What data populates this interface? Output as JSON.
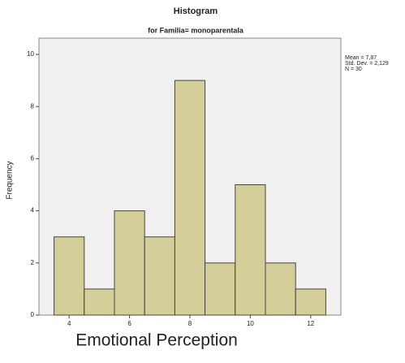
{
  "chart_data": {
    "type": "histogram",
    "title": "Histogram",
    "subtitle": "for Familia= monoparentala",
    "bins": [
      3.5,
      4.5,
      5.5,
      6.5,
      7.5,
      8.5,
      9.5,
      10.5,
      11.5,
      12.5
    ],
    "values": [
      3,
      1,
      4,
      3,
      9,
      2,
      5,
      2,
      1
    ],
    "color": "#d4cf98",
    "xlim": [
      3,
      13
    ],
    "xticks": [
      4,
      6,
      8,
      10,
      12
    ],
    "ylim": [
      0,
      10
    ],
    "yticks": [
      0,
      2,
      4,
      6,
      8,
      10
    ],
    "x_label": "Emotional Perception",
    "y_label": "Frequency",
    "annotations": [
      "Mean = 7,87",
      "Std. Dev. = 2,129",
      "N = 30"
    ]
  }
}
